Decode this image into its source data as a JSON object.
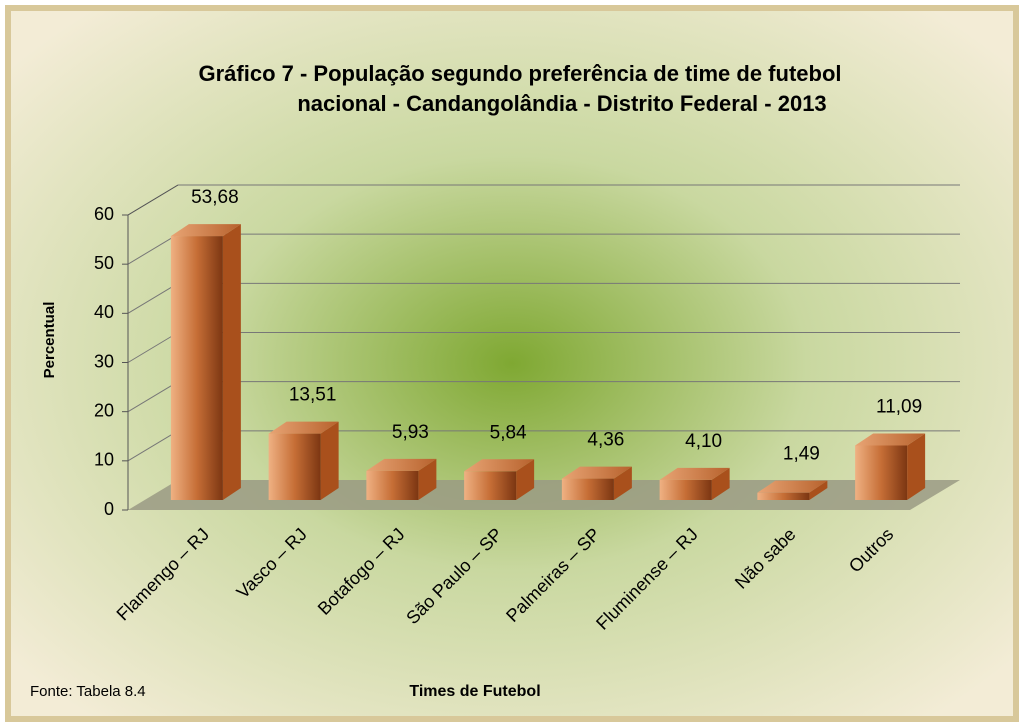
{
  "chart_data": {
    "type": "bar3d",
    "title": [
      "Gráfico 7 - População segundo preferência de time de futebol",
      "nacional - Candangolândia - Distrito Federal - 2013"
    ],
    "y_label": "Percentual",
    "x_label": "Times de Futebol",
    "source": "Fonte: Tabela 8.4",
    "categories": [
      "Flamengo – RJ",
      "Vasco – RJ",
      "Botafogo – RJ",
      "São Paulo – SP",
      "Palmeiras – SP",
      "Fluminense – RJ",
      "Não sabe",
      "Outros"
    ],
    "values": [
      53.68,
      13.51,
      5.93,
      5.84,
      4.36,
      4.1,
      1.49,
      11.09
    ],
    "value_labels": [
      "53,68",
      "13,51",
      "5,93",
      "5,84",
      "4,36",
      "4,10",
      "1,49",
      "11,09"
    ],
    "color": "#a9501c",
    "ylim": [
      0,
      60
    ],
    "yticks": [
      0,
      10,
      20,
      30,
      40,
      50,
      60
    ],
    "grid": true
  }
}
